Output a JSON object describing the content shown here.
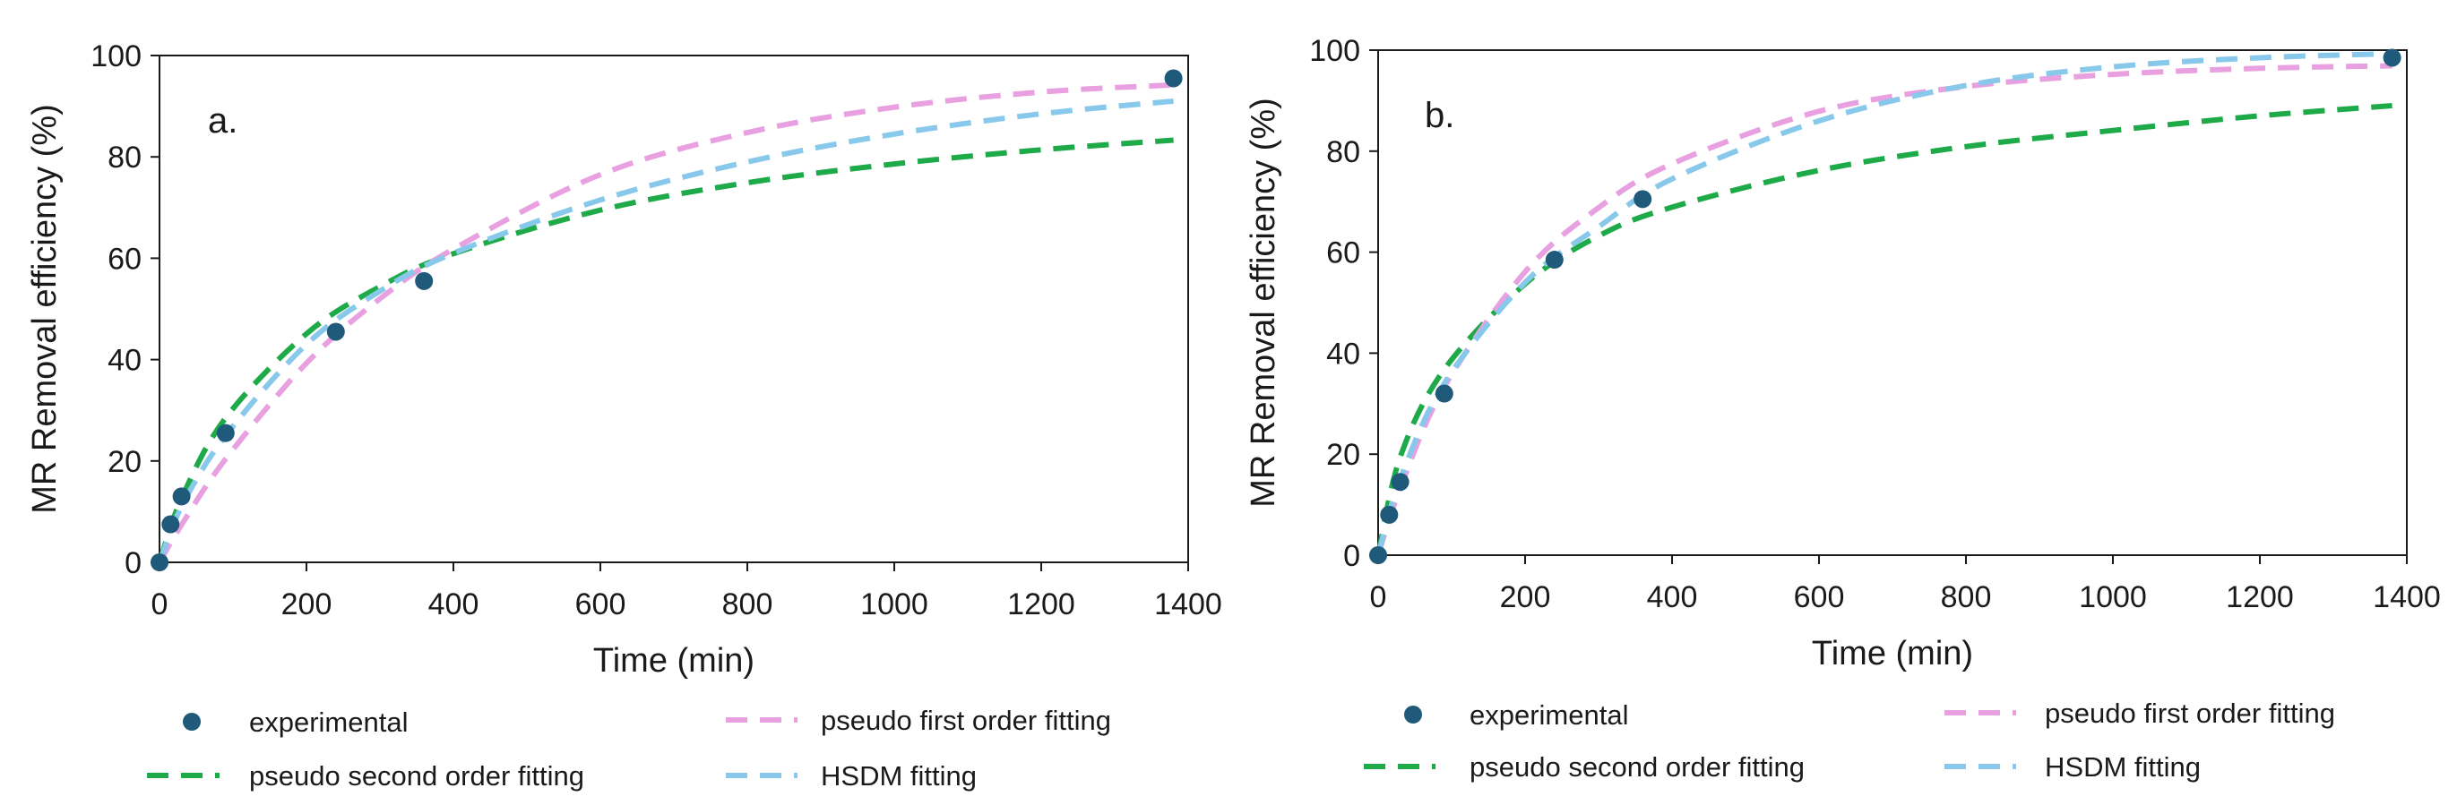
{
  "colors": {
    "experimental": "#1f5a7a",
    "pso": "#1faa4a",
    "pfo": "#e8a0e0",
    "hsdm": "#88c8ea",
    "axis": "#1a1a1a"
  },
  "legend": {
    "experimental": "experimental",
    "pfo": "pseudo first order fitting",
    "pso": "pseudo second order fitting",
    "hsdm": "HSDM fitting"
  },
  "chart_data": [
    {
      "type": "line",
      "panel": "a.",
      "xlabel": "Time (min)",
      "ylabel": "MR Removal efficiency (%)",
      "xlim": [
        0,
        1400
      ],
      "ylim": [
        0,
        100
      ],
      "xticks": [
        "0",
        "200",
        "400",
        "600",
        "800",
        "1000",
        "1200",
        "1400"
      ],
      "yticks": [
        "0",
        "20",
        "40",
        "60",
        "80",
        "100"
      ],
      "experimental": {
        "x": [
          0,
          15,
          30,
          90,
          240,
          360,
          1380
        ],
        "y": [
          0,
          7.5,
          13,
          25.5,
          45.5,
          55.5,
          95.5
        ]
      },
      "series": [
        {
          "name": "pseudo second order fitting",
          "key": "pso",
          "x": [
            0,
            30,
            90,
            200,
            300,
            400,
            600,
            800,
            1000,
            1200,
            1380
          ],
          "y": [
            0,
            12.6,
            28.5,
            45.1,
            54.4,
            60.9,
            69.5,
            74.9,
            78.6,
            81.4,
            83.3
          ]
        },
        {
          "name": "pseudo first order fitting",
          "key": "pfo",
          "x": [
            0,
            30,
            90,
            200,
            300,
            400,
            600,
            800,
            1000,
            1200,
            1380
          ],
          "y": [
            0,
            7.4,
            20.4,
            39.3,
            52.0,
            61.8,
            76.5,
            84.8,
            89.8,
            92.8,
            94.2
          ]
        },
        {
          "name": "HSDM fitting",
          "key": "hsdm",
          "x": [
            0,
            30,
            90,
            200,
            300,
            400,
            600,
            800,
            1000,
            1200,
            1380
          ],
          "y": [
            0,
            11.0,
            25.0,
            43.0,
            53.5,
            61.0,
            71.5,
            79.0,
            84.5,
            88.5,
            91.0
          ]
        }
      ]
    },
    {
      "type": "line",
      "panel": "b.",
      "xlabel": "Time (min)",
      "ylabel": "MR Removal efficiency (%)",
      "xlim": [
        0,
        1400
      ],
      "ylim": [
        0,
        100
      ],
      "xticks": [
        "0",
        "200",
        "400",
        "600",
        "800",
        "1000",
        "1200",
        "1400"
      ],
      "yticks": [
        "0",
        "20",
        "40",
        "60",
        "80",
        "100"
      ],
      "experimental": {
        "x": [
          0,
          15,
          30,
          90,
          240,
          360,
          1380
        ],
        "y": [
          0,
          8,
          14.5,
          32,
          58.5,
          70.5,
          98.5
        ]
      },
      "series": [
        {
          "name": "pseudo second order fitting",
          "key": "pso",
          "x": [
            0,
            30,
            90,
            200,
            300,
            400,
            600,
            800,
            1000,
            1200,
            1380
          ],
          "y": [
            0,
            19.4,
            36.8,
            53.7,
            63.2,
            68.9,
            76.2,
            80.9,
            84.1,
            87.0,
            89.0
          ]
        },
        {
          "name": "pseudo first order fitting",
          "key": "pfo",
          "x": [
            0,
            30,
            90,
            200,
            300,
            400,
            600,
            800,
            1000,
            1200,
            1380
          ],
          "y": [
            0,
            13.2,
            33.3,
            56.1,
            68.8,
            77.5,
            87.9,
            92.8,
            95.2,
            96.4,
            96.9
          ]
        },
        {
          "name": "HSDM fitting",
          "key": "hsdm",
          "x": [
            0,
            30,
            90,
            200,
            300,
            400,
            600,
            800,
            1000,
            1200,
            1380
          ],
          "y": [
            0,
            15.0,
            34.0,
            54.0,
            65.0,
            74.5,
            86.0,
            93.0,
            96.7,
            98.5,
            99.3
          ]
        }
      ]
    }
  ]
}
